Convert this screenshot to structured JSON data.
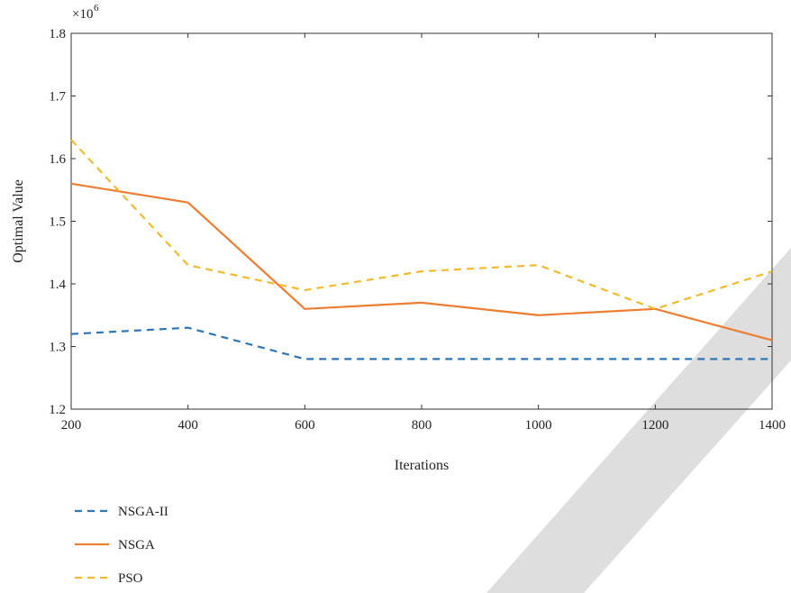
{
  "chart_data": {
    "type": "line",
    "title": "",
    "xlabel": "Iterations",
    "ylabel": "Optimal Value",
    "y_multiplier_label": "×10",
    "y_multiplier_exponent": "6",
    "xlim": [
      200,
      1400
    ],
    "ylim": [
      1.2,
      1.8
    ],
    "xticks": [
      200,
      400,
      600,
      800,
      1000,
      1200,
      1400
    ],
    "yticks": [
      1.2,
      1.3,
      1.4,
      1.5,
      1.6,
      1.7,
      1.8
    ],
    "x": [
      200,
      400,
      600,
      800,
      1000,
      1200,
      1400
    ],
    "series": [
      {
        "name": "NSGA-II",
        "values": [
          1.32,
          1.33,
          1.28,
          1.28,
          1.28,
          1.28,
          1.28
        ],
        "color": "#2e75b6",
        "dash": "dashed"
      },
      {
        "name": "NSGA",
        "values": [
          1.56,
          1.53,
          1.36,
          1.37,
          1.35,
          1.36,
          1.31
        ],
        "color": "#ed7d31",
        "dash": "solid"
      },
      {
        "name": "PSO",
        "values": [
          1.63,
          1.43,
          1.39,
          1.42,
          1.43,
          1.36,
          1.42
        ],
        "color": "#f5b92c",
        "dash": "dashed"
      }
    ],
    "grid": false,
    "legend_position": "bottom-left"
  }
}
